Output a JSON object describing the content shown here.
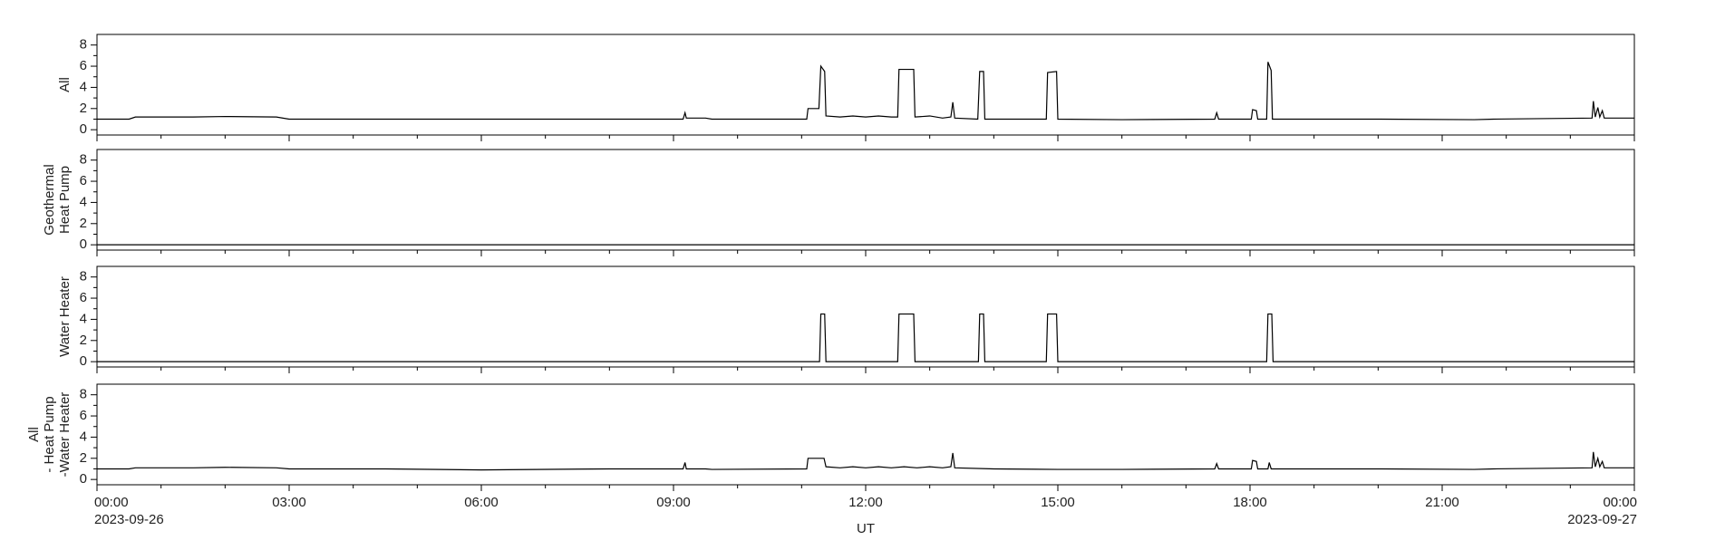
{
  "chart_data": [
    {
      "type": "line",
      "ylabel": [
        "All"
      ],
      "color": "#000000",
      "ylim": [
        -0.5,
        9
      ],
      "yticks": [
        0,
        2,
        4,
        6,
        8
      ],
      "yminor": [
        1,
        3,
        5,
        7
      ],
      "x": [
        0,
        0.5,
        0.6,
        1.5,
        2,
        2.8,
        3,
        4.5,
        6,
        8,
        9.15,
        9.18,
        9.2,
        9.5,
        9.6,
        11.08,
        11.1,
        11.27,
        11.3,
        11.36,
        11.38,
        11.6,
        11.8,
        12,
        12.2,
        12.4,
        12.5,
        12.52,
        12.75,
        12.77,
        13,
        13.2,
        13.33,
        13.36,
        13.39,
        13.75,
        13.78,
        13.84,
        13.86,
        14.3,
        14.82,
        14.84,
        14.98,
        15,
        16,
        17.45,
        17.48,
        17.51,
        18.02,
        18.04,
        18.1,
        18.12,
        18.26,
        18.28,
        18.33,
        18.35,
        20,
        21.5,
        21.8,
        23.34,
        23.36,
        23.39,
        23.43,
        23.46,
        23.5,
        23.53,
        24
      ],
      "values": [
        1,
        1,
        1.2,
        1.2,
        1.25,
        1.2,
        1,
        1,
        1,
        1,
        1,
        1.6,
        1.1,
        1.1,
        1,
        1,
        2,
        2,
        6,
        5.5,
        1.3,
        1.2,
        1.3,
        1.2,
        1.3,
        1.2,
        1.2,
        5.7,
        5.7,
        1.2,
        1.3,
        1.1,
        1.2,
        2.6,
        1.1,
        1,
        5.5,
        5.5,
        1,
        1,
        1,
        5.4,
        5.5,
        1,
        0.95,
        1,
        1.6,
        1,
        1,
        1.9,
        1.8,
        1,
        1,
        6.4,
        5.6,
        1,
        1,
        0.95,
        1,
        1.1,
        2.7,
        1.2,
        2.1,
        1.2,
        1.8,
        1.1,
        1.1
      ]
    },
    {
      "type": "line",
      "ylabel": [
        "Geothermal",
        "Heat Pump"
      ],
      "color": "#000000",
      "ylim": [
        -0.5,
        9
      ],
      "yticks": [
        0,
        2,
        4,
        6,
        8
      ],
      "yminor": [
        1,
        3,
        5,
        7
      ],
      "x": [
        0,
        24
      ],
      "values": [
        0,
        0
      ]
    },
    {
      "type": "line",
      "ylabel": [
        "Water Heater"
      ],
      "color": "#000000",
      "ylim": [
        -0.5,
        9
      ],
      "yticks": [
        0,
        2,
        4,
        6,
        8
      ],
      "yminor": [
        1,
        3,
        5,
        7
      ],
      "x": [
        0,
        11.28,
        11.3,
        11.36,
        11.38,
        12.5,
        12.52,
        12.75,
        12.77,
        13.76,
        13.78,
        13.84,
        13.86,
        14.82,
        14.84,
        14.98,
        15,
        18.26,
        18.28,
        18.34,
        18.36,
        24
      ],
      "values": [
        0,
        0,
        4.5,
        4.5,
        0,
        0,
        4.5,
        4.5,
        0,
        0,
        4.5,
        4.5,
        0,
        0,
        4.5,
        4.5,
        0,
        0,
        4.5,
        4.5,
        0,
        0
      ]
    },
    {
      "type": "line",
      "ylabel": [
        "All",
        "- Heat Pump",
        "-Water Heater"
      ],
      "color": "#000000",
      "ylim": [
        -0.5,
        9
      ],
      "yticks": [
        0,
        2,
        4,
        6,
        8
      ],
      "yminor": [
        1,
        3,
        5,
        7
      ],
      "x": [
        0,
        0.5,
        0.6,
        1.5,
        2,
        2.8,
        3,
        4.5,
        6,
        8,
        9.15,
        9.18,
        9.2,
        9.5,
        9.6,
        11.08,
        11.1,
        11.35,
        11.38,
        11.6,
        11.8,
        12,
        12.2,
        12.4,
        12.6,
        12.8,
        13,
        13.2,
        13.33,
        13.36,
        13.39,
        14,
        15,
        16,
        17.45,
        17.48,
        17.51,
        18.02,
        18.04,
        18.1,
        18.12,
        18.28,
        18.3,
        18.33,
        20,
        21.5,
        21.8,
        23.34,
        23.36,
        23.39,
        23.43,
        23.46,
        23.5,
        23.53,
        24
      ],
      "values": [
        1,
        1,
        1.1,
        1.1,
        1.15,
        1.1,
        1,
        1,
        0.9,
        1,
        1,
        1.6,
        1,
        1,
        0.95,
        1,
        2,
        2,
        1.2,
        1.1,
        1.2,
        1.1,
        1.2,
        1.1,
        1.2,
        1.1,
        1.2,
        1.1,
        1.2,
        2.5,
        1.1,
        1,
        0.95,
        0.95,
        1,
        1.5,
        1,
        1,
        1.8,
        1.7,
        1,
        1,
        1.6,
        1,
        1,
        0.95,
        1,
        1.1,
        2.6,
        1.2,
        2,
        1.2,
        1.7,
        1.1,
        1.1
      ],
      "xlim": [
        0,
        24
      ],
      "xticks": [
        {
          "value": 0,
          "label": "00:00"
        },
        {
          "value": 3,
          "label": "03:00"
        },
        {
          "value": 6,
          "label": "06:00"
        },
        {
          "value": 9,
          "label": "09:00"
        },
        {
          "value": 12,
          "label": "12:00"
        },
        {
          "value": 15,
          "label": "15:00"
        },
        {
          "value": 18,
          "label": "18:00"
        },
        {
          "value": 21,
          "label": "21:00"
        },
        {
          "value": 24,
          "label": "00:00"
        }
      ],
      "xminor": [
        1,
        2,
        4,
        5,
        7,
        8,
        10,
        11,
        13,
        14,
        16,
        17,
        19,
        20,
        22,
        23
      ],
      "date_labels": [
        {
          "value": 0,
          "label": "2023-09-26"
        },
        {
          "value": 24,
          "label": "2023-09-27"
        }
      ],
      "xlabel": "UT"
    }
  ]
}
